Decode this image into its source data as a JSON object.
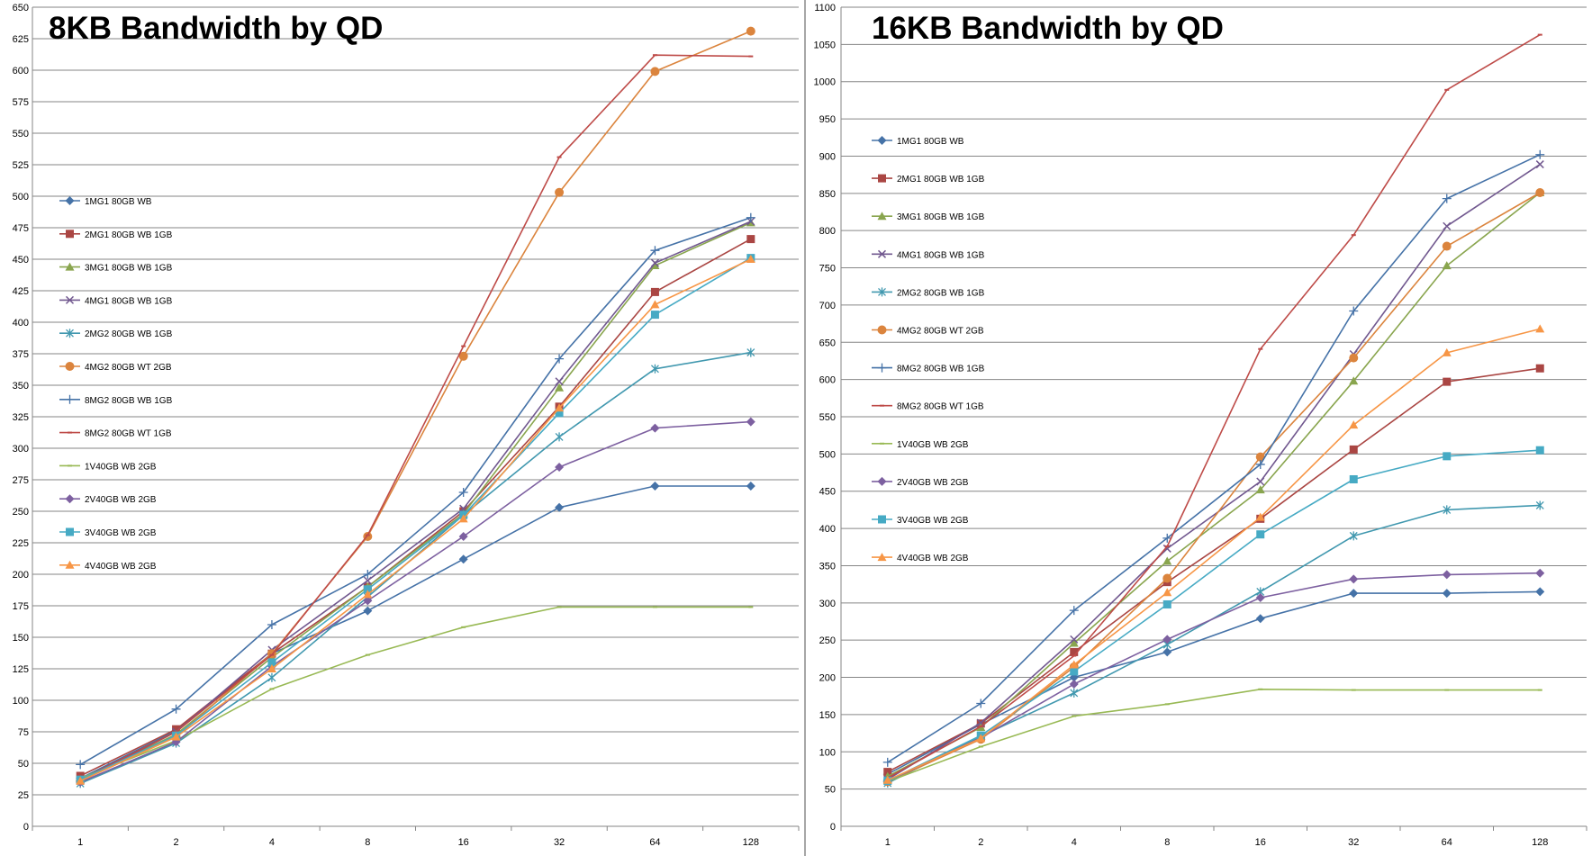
{
  "chart_data": [
    {
      "type": "line",
      "title": "8KB Bandwidth by QD",
      "xlabel": "",
      "ylabel": "",
      "categories": [
        "1",
        "2",
        "4",
        "8",
        "16",
        "32",
        "64",
        "128"
      ],
      "ylim": [
        0,
        650
      ],
      "ystep": 25,
      "grid": true,
      "legend_position": "left",
      "series": [
        {
          "name": "1MG1 80GB WB",
          "color": "#4572A7",
          "marker": "diamond",
          "values": [
            38,
            76,
            137,
            171,
            212,
            253,
            270,
            270
          ]
        },
        {
          "name": "2MG1 80GB WB 1GB",
          "color": "#AA4643",
          "marker": "square",
          "values": [
            40,
            77,
            137,
            190,
            250,
            333,
            424,
            466
          ]
        },
        {
          "name": "3MG1 80GB WB 1GB",
          "color": "#89A54E",
          "marker": "triangle",
          "values": [
            37,
            73,
            134,
            190,
            248,
            348,
            445,
            479
          ]
        },
        {
          "name": "4MG1 80GB WB 1GB",
          "color": "#71588F",
          "marker": "x",
          "values": [
            36,
            75,
            140,
            195,
            252,
            353,
            447,
            480
          ]
        },
        {
          "name": "2MG2 80GB WB 1GB",
          "color": "#4198AF",
          "marker": "star",
          "values": [
            34,
            66,
            118,
            182,
            247,
            309,
            363,
            376
          ]
        },
        {
          "name": "4MG2 80GB WT 2GB",
          "color": "#DB843D",
          "marker": "circle",
          "values": [
            36,
            71,
            137,
            230,
            373,
            503,
            599,
            631
          ]
        },
        {
          "name": "8MG2 80GB WB 1GB",
          "color": "#4572A7",
          "marker": "plus",
          "values": [
            49,
            93,
            160,
            200,
            265,
            371,
            457,
            483
          ]
        },
        {
          "name": "8MG2 80GB WT 1GB",
          "color": "#BE4B48",
          "marker": "dash",
          "values": [
            37,
            75,
            136,
            231,
            381,
            531,
            612,
            611
          ]
        },
        {
          "name": "1V40GB WB 2GB",
          "color": "#98B954",
          "marker": "dash",
          "values": [
            38,
            68,
            109,
            136,
            158,
            174,
            174,
            174
          ]
        },
        {
          "name": "2V40GB WB 2GB",
          "color": "#7D60A0",
          "marker": "diamond",
          "values": [
            35,
            67,
            127,
            179,
            230,
            285,
            316,
            321
          ]
        },
        {
          "name": "3V40GB WB 2GB",
          "color": "#46AAC4",
          "marker": "square",
          "values": [
            37,
            72,
            130,
            188,
            247,
            328,
            406,
            451
          ]
        },
        {
          "name": "4V40GB WB 2GB",
          "color": "#F79646",
          "marker": "triangle",
          "values": [
            36,
            71,
            125,
            184,
            244,
            332,
            414,
            450
          ]
        }
      ]
    },
    {
      "type": "line",
      "title": "16KB Bandwidth by QD",
      "xlabel": "",
      "ylabel": "",
      "categories": [
        "1",
        "2",
        "4",
        "8",
        "16",
        "32",
        "64",
        "128"
      ],
      "ylim": [
        0,
        1100
      ],
      "ystep": 50,
      "grid": true,
      "legend_position": "left",
      "series": [
        {
          "name": "1MG1 80GB WB",
          "color": "#4572A7",
          "marker": "diamond",
          "values": [
            70,
            137,
            200,
            234,
            279,
            313,
            313,
            315
          ]
        },
        {
          "name": "2MG1 80GB WB 1GB",
          "color": "#AA4643",
          "marker": "square",
          "values": [
            73,
            138,
            234,
            328,
            413,
            506,
            597,
            615
          ]
        },
        {
          "name": "3MG1 80GB WB 1GB",
          "color": "#89A54E",
          "marker": "triangle",
          "values": [
            67,
            133,
            246,
            356,
            452,
            598,
            753,
            851
          ]
        },
        {
          "name": "4MG1 80GB WB 1GB",
          "color": "#71588F",
          "marker": "x",
          "values": [
            63,
            139,
            251,
            373,
            463,
            634,
            806,
            889
          ]
        },
        {
          "name": "2MG2 80GB WB 1GB",
          "color": "#4198AF",
          "marker": "star",
          "values": [
            58,
            121,
            179,
            244,
            315,
            390,
            425,
            431
          ]
        },
        {
          "name": "4MG2 80GB WT 2GB",
          "color": "#DB843D",
          "marker": "circle",
          "values": [
            60,
            117,
            214,
            333,
            496,
            629,
            779,
            851
          ]
        },
        {
          "name": "8MG2 80GB WB 1GB",
          "color": "#4572A7",
          "marker": "plus",
          "values": [
            86,
            165,
            290,
            387,
            486,
            692,
            843,
            902
          ]
        },
        {
          "name": "8MG2 80GB WT 1GB",
          "color": "#BE4B48",
          "marker": "dash",
          "values": [
            65,
            134,
            229,
            376,
            641,
            794,
            989,
            1063
          ]
        },
        {
          "name": "1V40GB WB 2GB",
          "color": "#98B954",
          "marker": "dash",
          "values": [
            60,
            107,
            148,
            164,
            184,
            183,
            183,
            183
          ]
        },
        {
          "name": "2V40GB WB 2GB",
          "color": "#7D60A0",
          "marker": "diamond",
          "values": [
            61,
            119,
            191,
            251,
            307,
            332,
            338,
            340
          ]
        },
        {
          "name": "3V40GB WB 2GB",
          "color": "#46AAC4",
          "marker": "square",
          "values": [
            61,
            122,
            208,
            298,
            392,
            466,
            497,
            505
          ]
        },
        {
          "name": "4V40GB WB 2GB",
          "color": "#F79646",
          "marker": "triangle",
          "values": [
            62,
            118,
            217,
            314,
            415,
            539,
            636,
            668
          ]
        }
      ]
    }
  ]
}
